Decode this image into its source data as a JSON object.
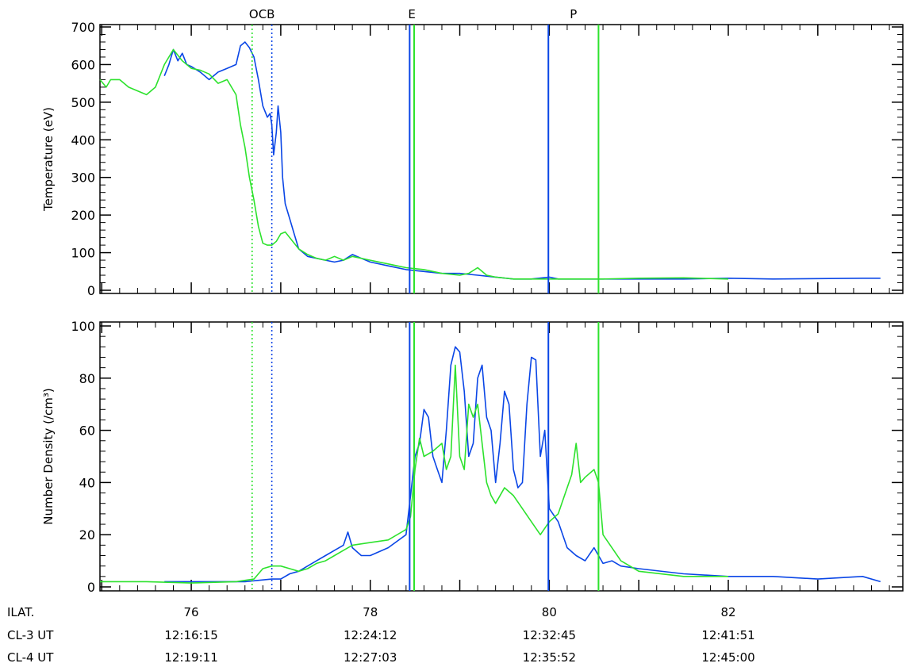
{
  "colors": {
    "cl3": "#0a46e6",
    "cl4": "#2de22d",
    "axis": "#000000"
  },
  "bottom_rows": [
    {
      "label": "ILAT.",
      "values": [
        "76",
        "78",
        "80",
        "82"
      ]
    },
    {
      "label": "CL-3 UT",
      "values": [
        "12:16:15",
        "12:24:12",
        "12:32:45",
        "12:41:51"
      ]
    },
    {
      "label": "CL-4 UT",
      "values": [
        "12:19:11",
        "12:27:03",
        "12:35:52",
        "12:45:00"
      ]
    }
  ],
  "chart_data": [
    {
      "type": "line",
      "ylabel": "Temperature (eV)",
      "xlim": [
        74.98,
        83.95
      ],
      "ylim": [
        0,
        700
      ],
      "yticks": [
        0,
        100,
        200,
        300,
        400,
        500,
        600,
        700
      ],
      "xticks": [
        76,
        78,
        80,
        82
      ],
      "grid": false,
      "markers": [
        {
          "label": "OCB",
          "lines": [
            {
              "x": 76.68,
              "series": "cl4",
              "style": "dotted"
            },
            {
              "x": 76.9,
              "series": "cl3",
              "style": "dotted"
            }
          ]
        },
        {
          "label": "E",
          "lines": [
            {
              "x": 78.44,
              "series": "cl3",
              "style": "solid"
            },
            {
              "x": 78.49,
              "series": "cl4",
              "style": "solid"
            }
          ]
        },
        {
          "label": "P",
          "lines": [
            {
              "x": 79.99,
              "series": "cl3",
              "style": "solid"
            },
            {
              "x": 80.55,
              "series": "cl4",
              "style": "solid"
            }
          ]
        }
      ],
      "series": [
        {
          "key": "cl3",
          "x": [
            75.7,
            75.75,
            75.8,
            75.85,
            75.9,
            75.95,
            76.0,
            76.1,
            76.2,
            76.3,
            76.4,
            76.5,
            76.55,
            76.6,
            76.65,
            76.7,
            76.75,
            76.8,
            76.85,
            76.88,
            76.9,
            76.92,
            76.95,
            76.97,
            77.0,
            77.02,
            77.05,
            77.1,
            77.15,
            77.2,
            77.3,
            77.4,
            77.5,
            77.6,
            77.7,
            77.8,
            77.9,
            78.0,
            78.2,
            78.4,
            78.6,
            78.8,
            79.0,
            79.2,
            79.4,
            79.6,
            79.8,
            80.0,
            80.1,
            80.3,
            80.6,
            81.0,
            81.5,
            82.0,
            82.5,
            83.0,
            83.5,
            83.7
          ],
          "y": [
            570,
            600,
            640,
            610,
            630,
            600,
            595,
            580,
            560,
            580,
            590,
            600,
            650,
            660,
            645,
            620,
            560,
            490,
            460,
            470,
            440,
            360,
            420,
            490,
            420,
            300,
            230,
            190,
            150,
            110,
            90,
            85,
            80,
            75,
            80,
            95,
            85,
            75,
            65,
            55,
            50,
            45,
            45,
            40,
            35,
            30,
            30,
            35,
            30,
            30,
            30,
            30,
            30,
            32,
            30,
            31,
            32,
            32
          ]
        },
        {
          "key": "cl4",
          "x": [
            74.98,
            75.05,
            75.1,
            75.2,
            75.3,
            75.4,
            75.5,
            75.6,
            75.7,
            75.8,
            75.9,
            76.0,
            76.1,
            76.2,
            76.3,
            76.4,
            76.5,
            76.55,
            76.6,
            76.65,
            76.7,
            76.75,
            76.8,
            76.85,
            76.9,
            76.95,
            77.0,
            77.05,
            77.1,
            77.2,
            77.3,
            77.4,
            77.5,
            77.6,
            77.7,
            77.8,
            78.0,
            78.2,
            78.4,
            78.6,
            78.8,
            79.0,
            79.1,
            79.2,
            79.3,
            79.4,
            79.6,
            79.8,
            80.0,
            80.3,
            80.6,
            81.0,
            81.5,
            82.0
          ],
          "y": [
            560,
            540,
            560,
            560,
            540,
            530,
            520,
            540,
            600,
            640,
            610,
            590,
            585,
            575,
            550,
            560,
            520,
            440,
            380,
            300,
            240,
            170,
            125,
            120,
            120,
            130,
            150,
            155,
            140,
            110,
            95,
            85,
            80,
            90,
            80,
            90,
            80,
            70,
            60,
            55,
            45,
            40,
            45,
            60,
            40,
            35,
            30,
            30,
            30,
            30,
            30,
            32,
            33,
            30
          ]
        }
      ]
    },
    {
      "type": "line",
      "ylabel": "Number Density (/cm³)",
      "xlim": [
        74.98,
        83.95
      ],
      "ylim": [
        0,
        100
      ],
      "yticks": [
        0,
        20,
        40,
        60,
        80,
        100
      ],
      "xticks": [
        76,
        78,
        80,
        82
      ],
      "grid": false,
      "markers": [
        {
          "label": "",
          "lines": [
            {
              "x": 76.68,
              "series": "cl4",
              "style": "dotted"
            },
            {
              "x": 76.9,
              "series": "cl3",
              "style": "dotted"
            }
          ]
        },
        {
          "label": "",
          "lines": [
            {
              "x": 78.44,
              "series": "cl3",
              "style": "solid"
            },
            {
              "x": 78.49,
              "series": "cl4",
              "style": "solid"
            }
          ]
        },
        {
          "label": "",
          "lines": [
            {
              "x": 79.99,
              "series": "cl3",
              "style": "solid"
            },
            {
              "x": 80.55,
              "series": "cl4",
              "style": "solid"
            }
          ]
        }
      ],
      "series": [
        {
          "key": "cl3",
          "x": [
            75.7,
            76.0,
            76.3,
            76.6,
            76.9,
            77.0,
            77.1,
            77.2,
            77.3,
            77.4,
            77.5,
            77.6,
            77.7,
            77.75,
            77.8,
            77.9,
            78.0,
            78.2,
            78.4,
            78.45,
            78.5,
            78.55,
            78.6,
            78.65,
            78.7,
            78.75,
            78.8,
            78.85,
            78.9,
            78.95,
            79.0,
            79.05,
            79.1,
            79.15,
            79.2,
            79.25,
            79.3,
            79.35,
            79.4,
            79.45,
            79.5,
            79.55,
            79.6,
            79.65,
            79.7,
            79.75,
            79.8,
            79.85,
            79.9,
            79.95,
            80.0,
            80.1,
            80.2,
            80.3,
            80.4,
            80.5,
            80.6,
            80.7,
            80.8,
            81.0,
            81.5,
            82.0,
            82.5,
            83.0,
            83.5,
            83.7
          ],
          "y": [
            2,
            2,
            2,
            2,
            3,
            3,
            5,
            6,
            8,
            10,
            12,
            14,
            16,
            21,
            15,
            12,
            12,
            15,
            20,
            35,
            50,
            55,
            68,
            65,
            50,
            45,
            40,
            60,
            85,
            92,
            90,
            75,
            50,
            55,
            80,
            85,
            65,
            60,
            40,
            55,
            75,
            70,
            45,
            38,
            40,
            70,
            88,
            87,
            50,
            60,
            30,
            25,
            15,
            12,
            10,
            15,
            9,
            10,
            8,
            7,
            5,
            4,
            4,
            3,
            4,
            2
          ]
        },
        {
          "key": "cl4",
          "x": [
            74.98,
            75.5,
            76.0,
            76.5,
            76.7,
            76.8,
            76.9,
            77.0,
            77.1,
            77.2,
            77.3,
            77.4,
            77.5,
            77.6,
            77.7,
            77.8,
            78.0,
            78.2,
            78.4,
            78.45,
            78.5,
            78.55,
            78.6,
            78.7,
            78.8,
            78.85,
            78.9,
            78.95,
            79.0,
            79.05,
            79.1,
            79.15,
            79.2,
            79.25,
            79.3,
            79.35,
            79.4,
            79.5,
            79.6,
            79.7,
            79.8,
            79.9,
            80.0,
            80.1,
            80.2,
            80.25,
            80.3,
            80.35,
            80.4,
            80.5,
            80.55,
            80.6,
            80.7,
            80.8,
            81.0,
            81.5,
            82.0
          ],
          "y": [
            2,
            2,
            1.5,
            2,
            3,
            7,
            8,
            8,
            7,
            6,
            7,
            9,
            10,
            12,
            14,
            16,
            17,
            18,
            22,
            27,
            45,
            57,
            50,
            52,
            55,
            45,
            50,
            85,
            50,
            45,
            70,
            65,
            70,
            55,
            40,
            35,
            32,
            38,
            35,
            30,
            25,
            20,
            25,
            28,
            38,
            43,
            55,
            40,
            42,
            45,
            40,
            20,
            15,
            10,
            6,
            4,
            4
          ]
        }
      ]
    }
  ]
}
